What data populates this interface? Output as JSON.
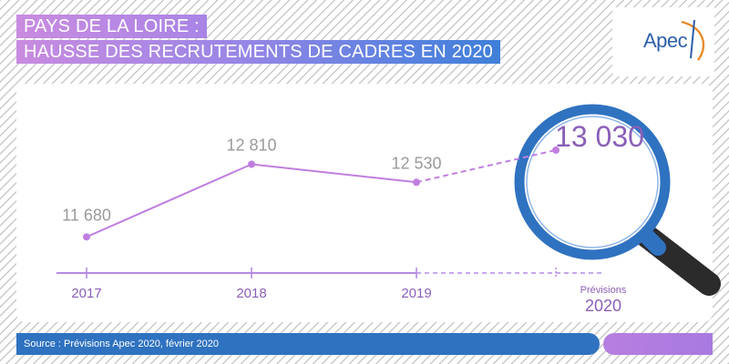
{
  "title": {
    "line1": "PAYS DE LA LOIRE :",
    "line2": "HAUSSE DES RECRUTEMENTS DE CADRES EN 2020"
  },
  "logo": {
    "text": "Apec"
  },
  "footer": {
    "source": "Source : Prévisions Apec 2020, février 2020"
  },
  "colors": {
    "line": "#c07fe0",
    "axis": "#b48be6",
    "label": "#8a5fb8",
    "value": "#9a9a9a",
    "magnifier": "#2f72c0",
    "handle": "#2b2b2b",
    "footer": "#2f72c0"
  },
  "chart_data": {
    "type": "line",
    "categories": [
      "2017",
      "2018",
      "2019",
      "2020"
    ],
    "forecast_prefix": "Prévisions",
    "values": [
      11680,
      12810,
      12530,
      13030
    ],
    "value_labels": [
      "11 680",
      "12 810",
      "12 530",
      "13 030"
    ],
    "forecast_index": 3,
    "segments": {
      "actual": "solid",
      "forecast": "dashed"
    },
    "title": "PAYS DE LA LOIRE : HAUSSE DES RECRUTEMENTS DE CADRES EN 2020",
    "xlabel": "",
    "ylabel": "",
    "ylim": [
      11000,
      13500
    ],
    "grid": false,
    "highlight": "magnifying-glass"
  }
}
